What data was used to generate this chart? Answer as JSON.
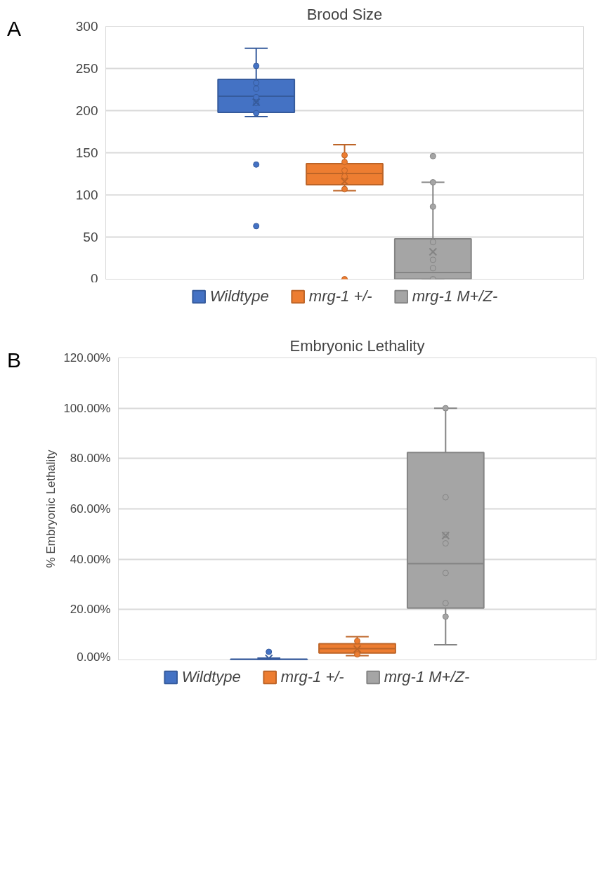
{
  "chart_data": [
    {
      "type": "box",
      "title": "Brood Size",
      "categories": [
        null
      ],
      "ylim": [
        0,
        300
      ],
      "yticks": [
        0,
        50,
        100,
        150,
        200,
        250,
        300
      ],
      "grid": "y",
      "legend": "bottom",
      "annotations": [
        "A"
      ],
      "series": [
        {
          "name": "Wildtype",
          "color": "#4472c4",
          "boxes": [
            {
              "low": 193,
              "q1": 198,
              "median": 217,
              "q3": 237,
              "high": 274,
              "mean": 210,
              "outliers": [
                253,
                233,
                226,
                216,
                209,
                197,
                136,
                63
              ]
            }
          ]
        },
        {
          "name": "mrg-1 +/-",
          "color": "#ed7d31",
          "boxes": [
            {
              "low": 105,
              "q1": 112,
              "median": 125.5,
              "q3": 137,
              "high": 159.5,
              "mean": 116,
              "outliers": [
                147,
                139,
                129,
                122,
                107,
                0
              ]
            }
          ]
        },
        {
          "name": "mrg-1 M+/Z-",
          "color": "#a5a5a5",
          "boxes": [
            {
              "low": 0,
              "q1": 0,
              "median": 8,
              "q3": 48,
              "high": 115,
              "mean": 32.5,
              "outliers": [
                146,
                115,
                86,
                44,
                23,
                13,
                0
              ]
            }
          ]
        }
      ]
    },
    {
      "type": "box",
      "title": "Embryonic Lethality",
      "ylabel": "% Embryonic Lethality",
      "categories": [
        null
      ],
      "ylim": [
        0,
        120
      ],
      "yticks": [
        {
          "value": 0,
          "label": "0.00%"
        },
        {
          "value": 20,
          "label": "20.00%"
        },
        {
          "value": 40,
          "label": "40.00%"
        },
        {
          "value": 60,
          "label": "60.00%"
        },
        {
          "value": 80,
          "label": "80.00%"
        },
        {
          "value": 100,
          "label": "100.00%"
        },
        {
          "value": 120,
          "label": "120.00%"
        }
      ],
      "grid": "y",
      "legend": "bottom",
      "annotations": [
        "B"
      ],
      "series": [
        {
          "name": "Wildtype",
          "color": "#4472c4",
          "boxes": [
            {
              "low": 0,
              "q1": 0,
              "median": 0,
              "q3": 0.3,
              "high": 0.7,
              "mean": 0.6,
              "outliers": [
                3.2
              ]
            }
          ]
        },
        {
          "name": "mrg-1 +/-",
          "color": "#ed7d31",
          "boxes": [
            {
              "low": 1.7,
              "q1": 2.7,
              "median": 4.5,
              "q3": 6.4,
              "high": 9.2,
              "mean": 4.3,
              "outliers": [
                7.5,
                2.2
              ]
            }
          ]
        },
        {
          "name": "mrg-1 M+/Z-",
          "color": "#a5a5a5",
          "boxes": [
            {
              "low": 6.0,
              "q1": 20.6,
              "median": 38.2,
              "q3": 82.4,
              "high": 100,
              "mean": 49.4,
              "outliers": [
                100,
                64.6,
                49.7,
                46.3,
                34.5,
                22.5,
                17.2
              ]
            }
          ]
        }
      ]
    }
  ]
}
